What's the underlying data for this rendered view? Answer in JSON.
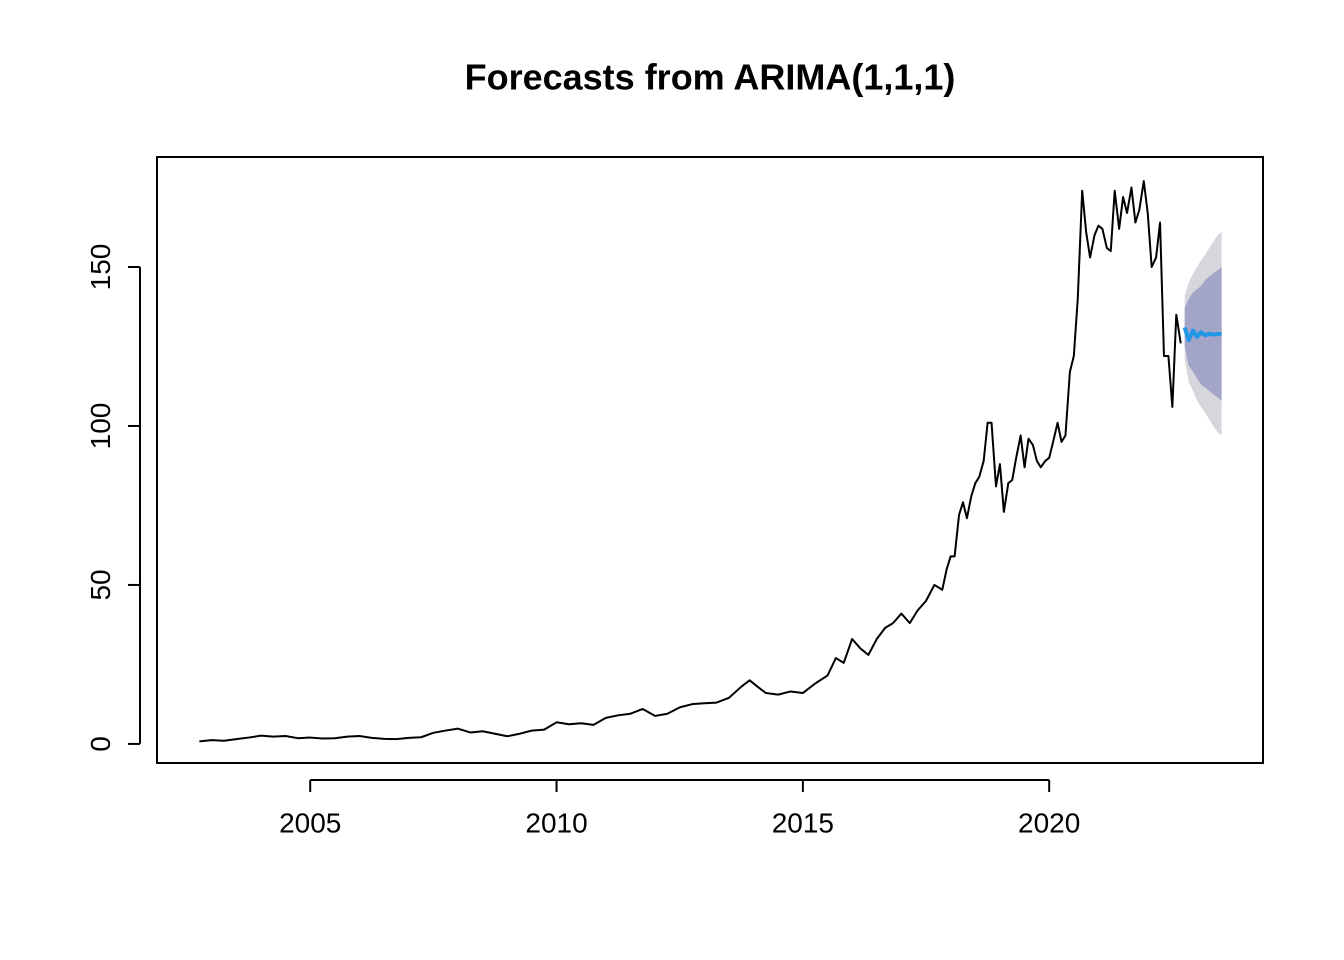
{
  "chart_data": {
    "type": "line",
    "title": "Forecasts from ARIMA(1,1,1)",
    "x": [
      2002.75,
      2003.0,
      2003.25,
      2003.5,
      2003.75,
      2004.0,
      2004.25,
      2004.5,
      2004.75,
      2005.0,
      2005.25,
      2005.5,
      2005.75,
      2006.0,
      2006.25,
      2006.5,
      2006.75,
      2007.0,
      2007.25,
      2007.5,
      2007.75,
      2008.0,
      2008.25,
      2008.5,
      2008.75,
      2009.0,
      2009.25,
      2009.5,
      2009.75,
      2010.0,
      2010.25,
      2010.5,
      2010.75,
      2011.0,
      2011.25,
      2011.5,
      2011.75,
      2012.0,
      2012.25,
      2012.5,
      2012.75,
      2013.0,
      2013.25,
      2013.5,
      2013.75,
      2013.92,
      2014.08,
      2014.25,
      2014.5,
      2014.75,
      2015.0,
      2015.25,
      2015.5,
      2015.67,
      2015.83,
      2016.0,
      2016.17,
      2016.33,
      2016.5,
      2016.67,
      2016.83,
      2017.0,
      2017.17,
      2017.33,
      2017.5,
      2017.67,
      2017.83,
      2017.92,
      2018.0,
      2018.08,
      2018.17,
      2018.25,
      2018.33,
      2018.42,
      2018.5,
      2018.58,
      2018.67,
      2018.75,
      2018.83,
      2018.92,
      2019.0,
      2019.08,
      2019.17,
      2019.25,
      2019.33,
      2019.42,
      2019.5,
      2019.58,
      2019.67,
      2019.75,
      2019.83,
      2019.92,
      2020.0,
      2020.08,
      2020.17,
      2020.25,
      2020.33,
      2020.42,
      2020.5,
      2020.58,
      2020.67,
      2020.75,
      2020.83,
      2020.92,
      2021.0,
      2021.08,
      2021.17,
      2021.25,
      2021.33,
      2021.42,
      2021.5,
      2021.58,
      2021.67,
      2021.75,
      2021.83,
      2021.92,
      2022.0,
      2022.08,
      2022.17,
      2022.25,
      2022.33,
      2022.42,
      2022.5,
      2022.58,
      2022.67
    ],
    "series": [
      {
        "color": "#000000",
        "values": [
          0.8,
          1.2,
          1.0,
          1.5,
          2.0,
          2.6,
          2.3,
          2.5,
          1.8,
          2.0,
          1.7,
          1.8,
          2.3,
          2.5,
          1.9,
          1.6,
          1.5,
          1.9,
          2.1,
          3.5,
          4.2,
          4.8,
          3.6,
          4.0,
          3.2,
          2.4,
          3.2,
          4.2,
          4.5,
          6.8,
          6.2,
          6.5,
          6.0,
          8.2,
          9.0,
          9.5,
          11.0,
          8.8,
          9.5,
          11.5,
          12.5,
          12.8,
          13.0,
          14.5,
          18.0,
          20.0,
          18.0,
          16.0,
          15.5,
          16.5,
          16.0,
          19.0,
          21.5,
          27.0,
          25.5,
          33.0,
          30.0,
          28.0,
          33.0,
          36.5,
          38.0,
          41.0,
          38.0,
          42.0,
          45.0,
          50.0,
          48.5,
          55,
          59,
          59,
          72,
          76,
          71,
          78,
          82,
          84,
          89,
          101,
          101,
          81,
          88,
          73,
          82,
          83,
          90,
          97,
          87,
          96,
          94,
          89,
          87,
          89,
          90,
          95,
          101,
          95,
          97,
          117,
          122,
          140,
          174,
          161,
          153,
          160,
          163,
          162,
          156,
          155,
          174,
          162,
          172,
          167,
          175,
          164,
          168,
          177,
          167,
          150,
          153,
          164,
          122,
          122,
          106,
          135,
          126
        ]
      }
    ],
    "forecast": {
      "x": [
        2022.75,
        2022.83,
        2022.92,
        2023.0,
        2023.08,
        2023.17,
        2023.25,
        2023.33,
        2023.42,
        2023.5
      ],
      "mean": [
        131,
        127,
        130,
        128,
        129.5,
        128.5,
        129,
        128.7,
        129,
        128.8
      ],
      "lower80": [
        125,
        119,
        117,
        115,
        113,
        112,
        111,
        110,
        109,
        108
      ],
      "upper80": [
        137,
        140,
        142,
        143,
        144,
        146,
        147,
        148,
        149,
        150
      ],
      "lower95": [
        121,
        114,
        111,
        108,
        106,
        104,
        102,
        100,
        98,
        97
      ],
      "upper95": [
        141,
        145,
        148,
        150,
        152,
        154,
        156,
        158,
        160,
        161
      ],
      "color": "#2297e6",
      "band80_color": "#a3a5c8",
      "band95_color": "#d6d6dc"
    },
    "xlim": [
      2001.89,
      2024.34
    ],
    "ylim": [
      -6.0,
      184.6
    ],
    "xticks": [
      2005,
      2010,
      2015,
      2020
    ],
    "yticks": [
      0,
      50,
      100,
      150
    ]
  }
}
